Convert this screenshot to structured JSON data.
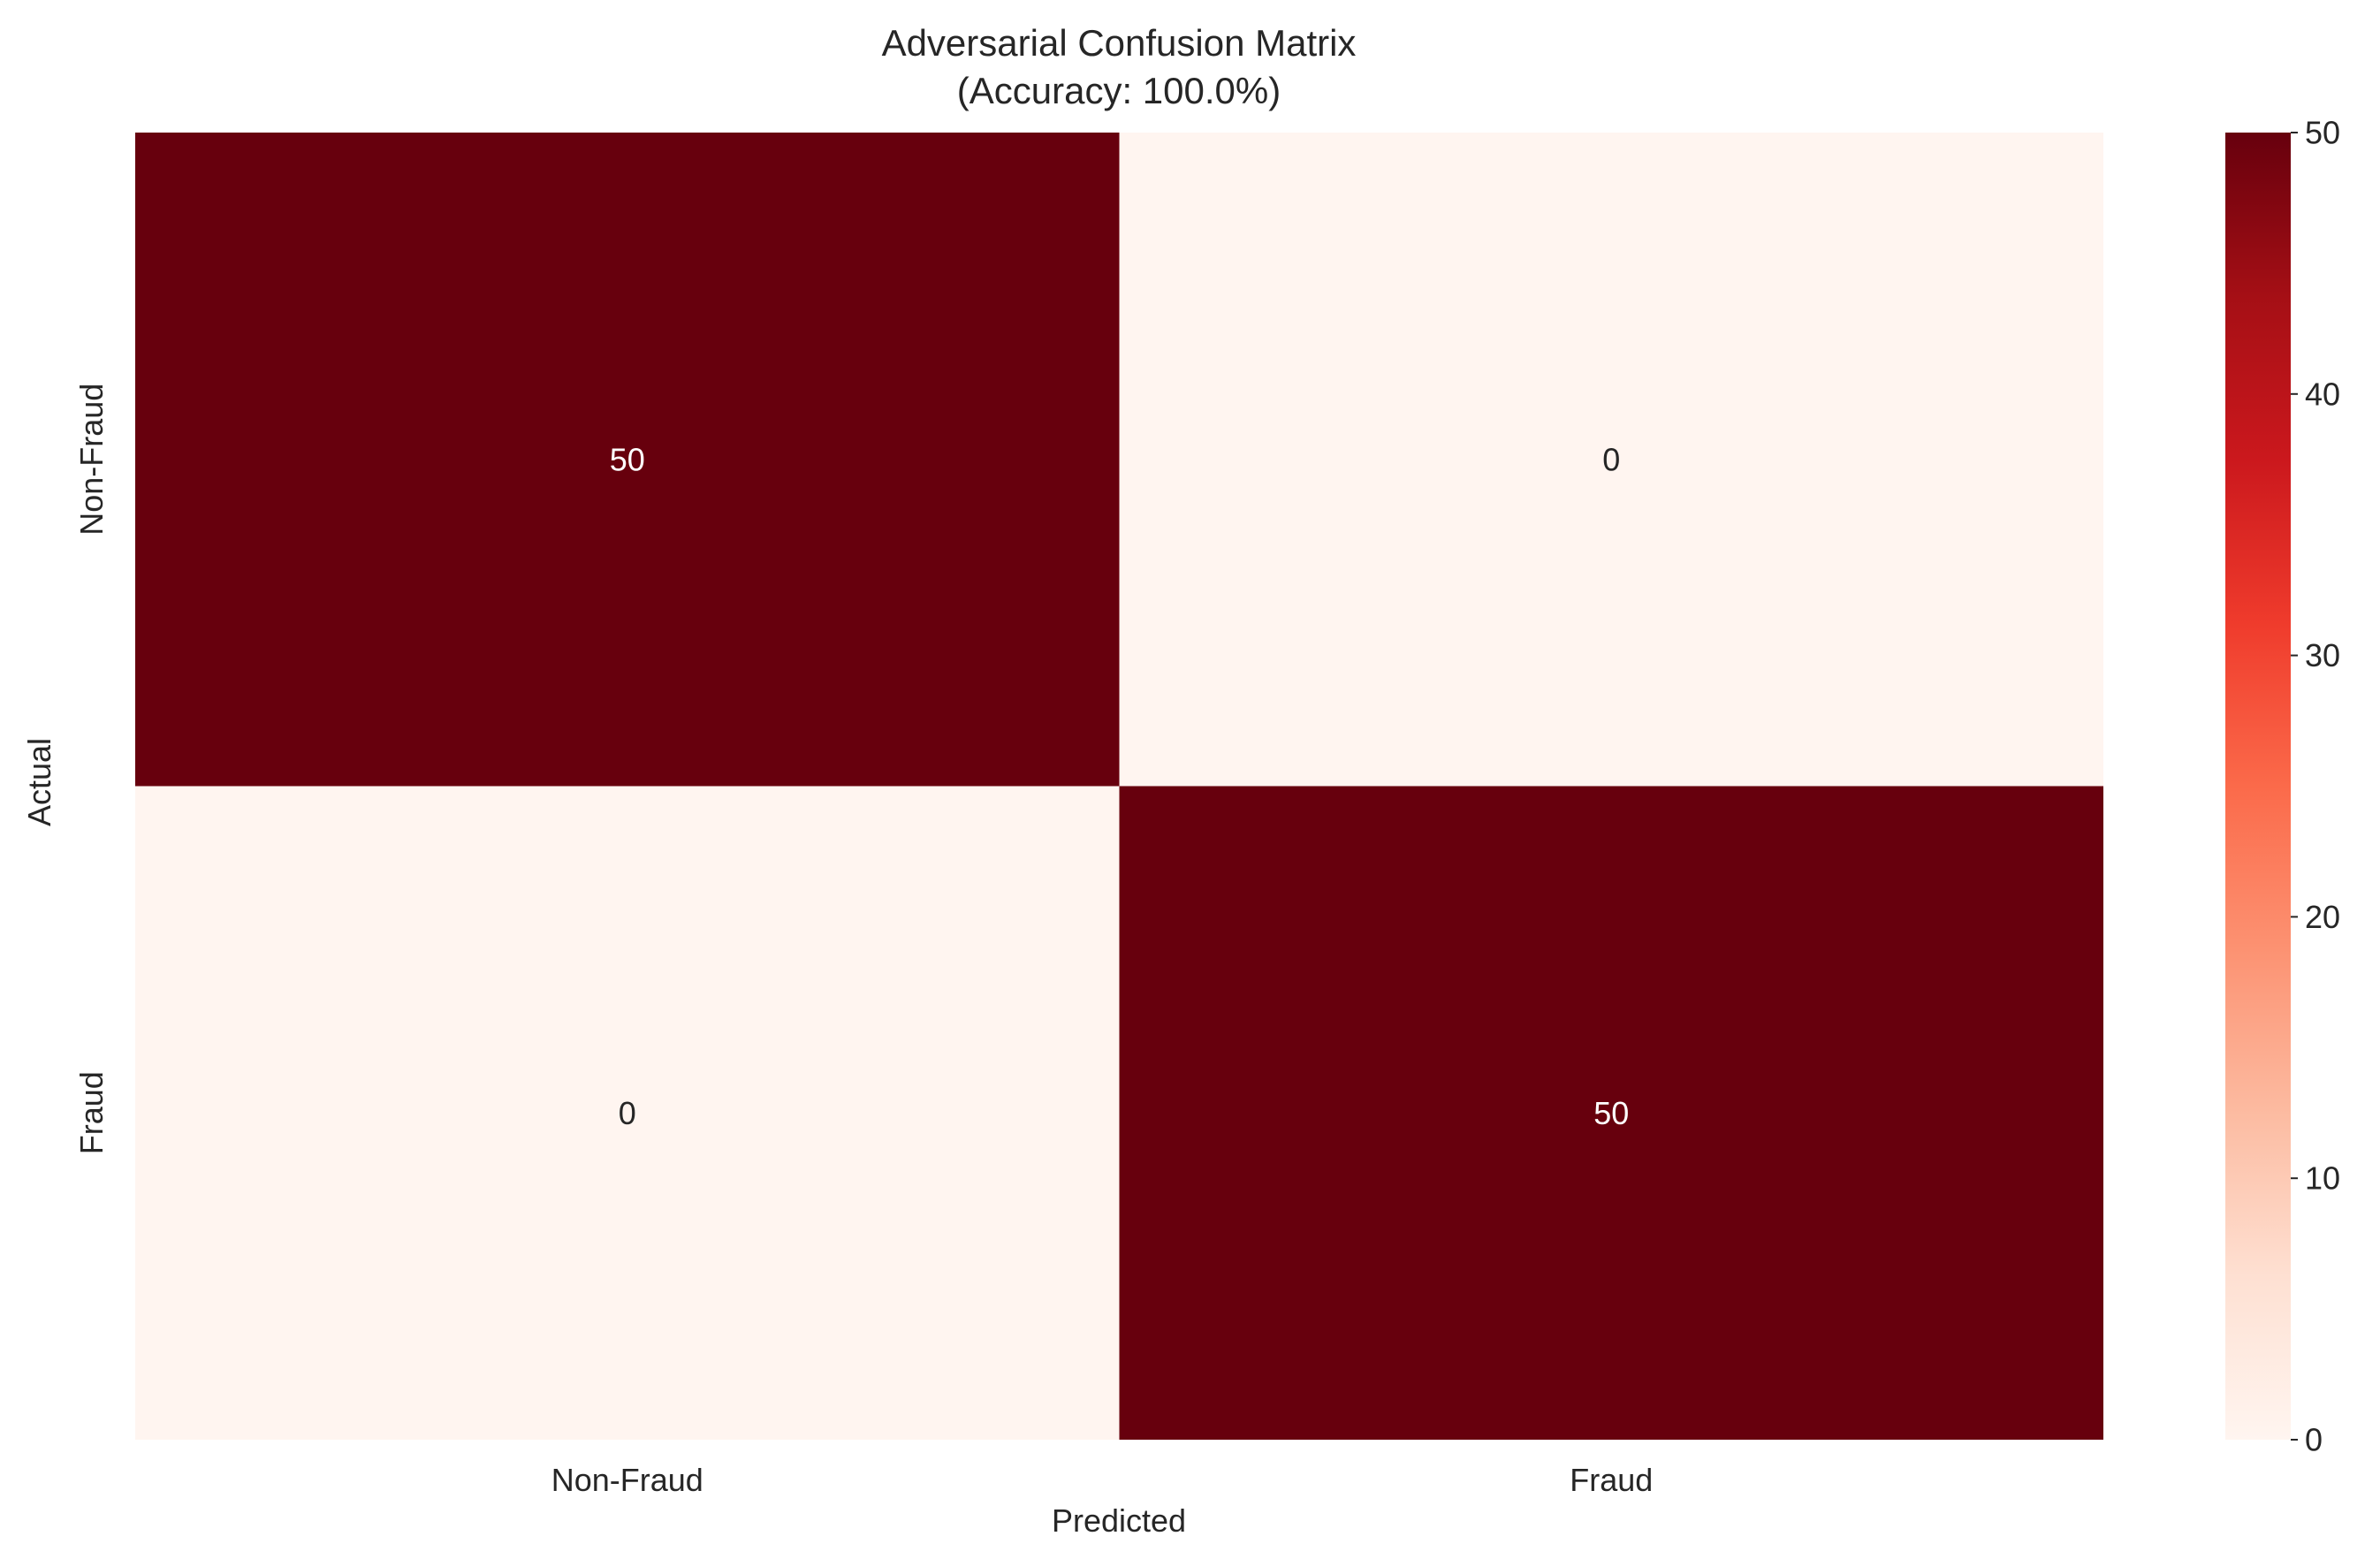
{
  "chart_data": {
    "type": "heatmap",
    "title": "Adversarial Confusion Matrix",
    "subtitle": "(Accuracy: 100.0%)",
    "xlabel": "Predicted",
    "ylabel": "Actual",
    "x_categories": [
      "Non-Fraud",
      "Fraud"
    ],
    "y_categories": [
      "Non-Fraud",
      "Fraud"
    ],
    "values": [
      [
        50,
        0
      ],
      [
        0,
        50
      ]
    ],
    "colormap": "Reds",
    "color_range": [
      0,
      50
    ],
    "colorbar_ticks": [
      0,
      10,
      20,
      30,
      40,
      50
    ],
    "grid": false,
    "cell_text_colors": {
      "dark": "#ffffff",
      "light": "#262626"
    }
  }
}
